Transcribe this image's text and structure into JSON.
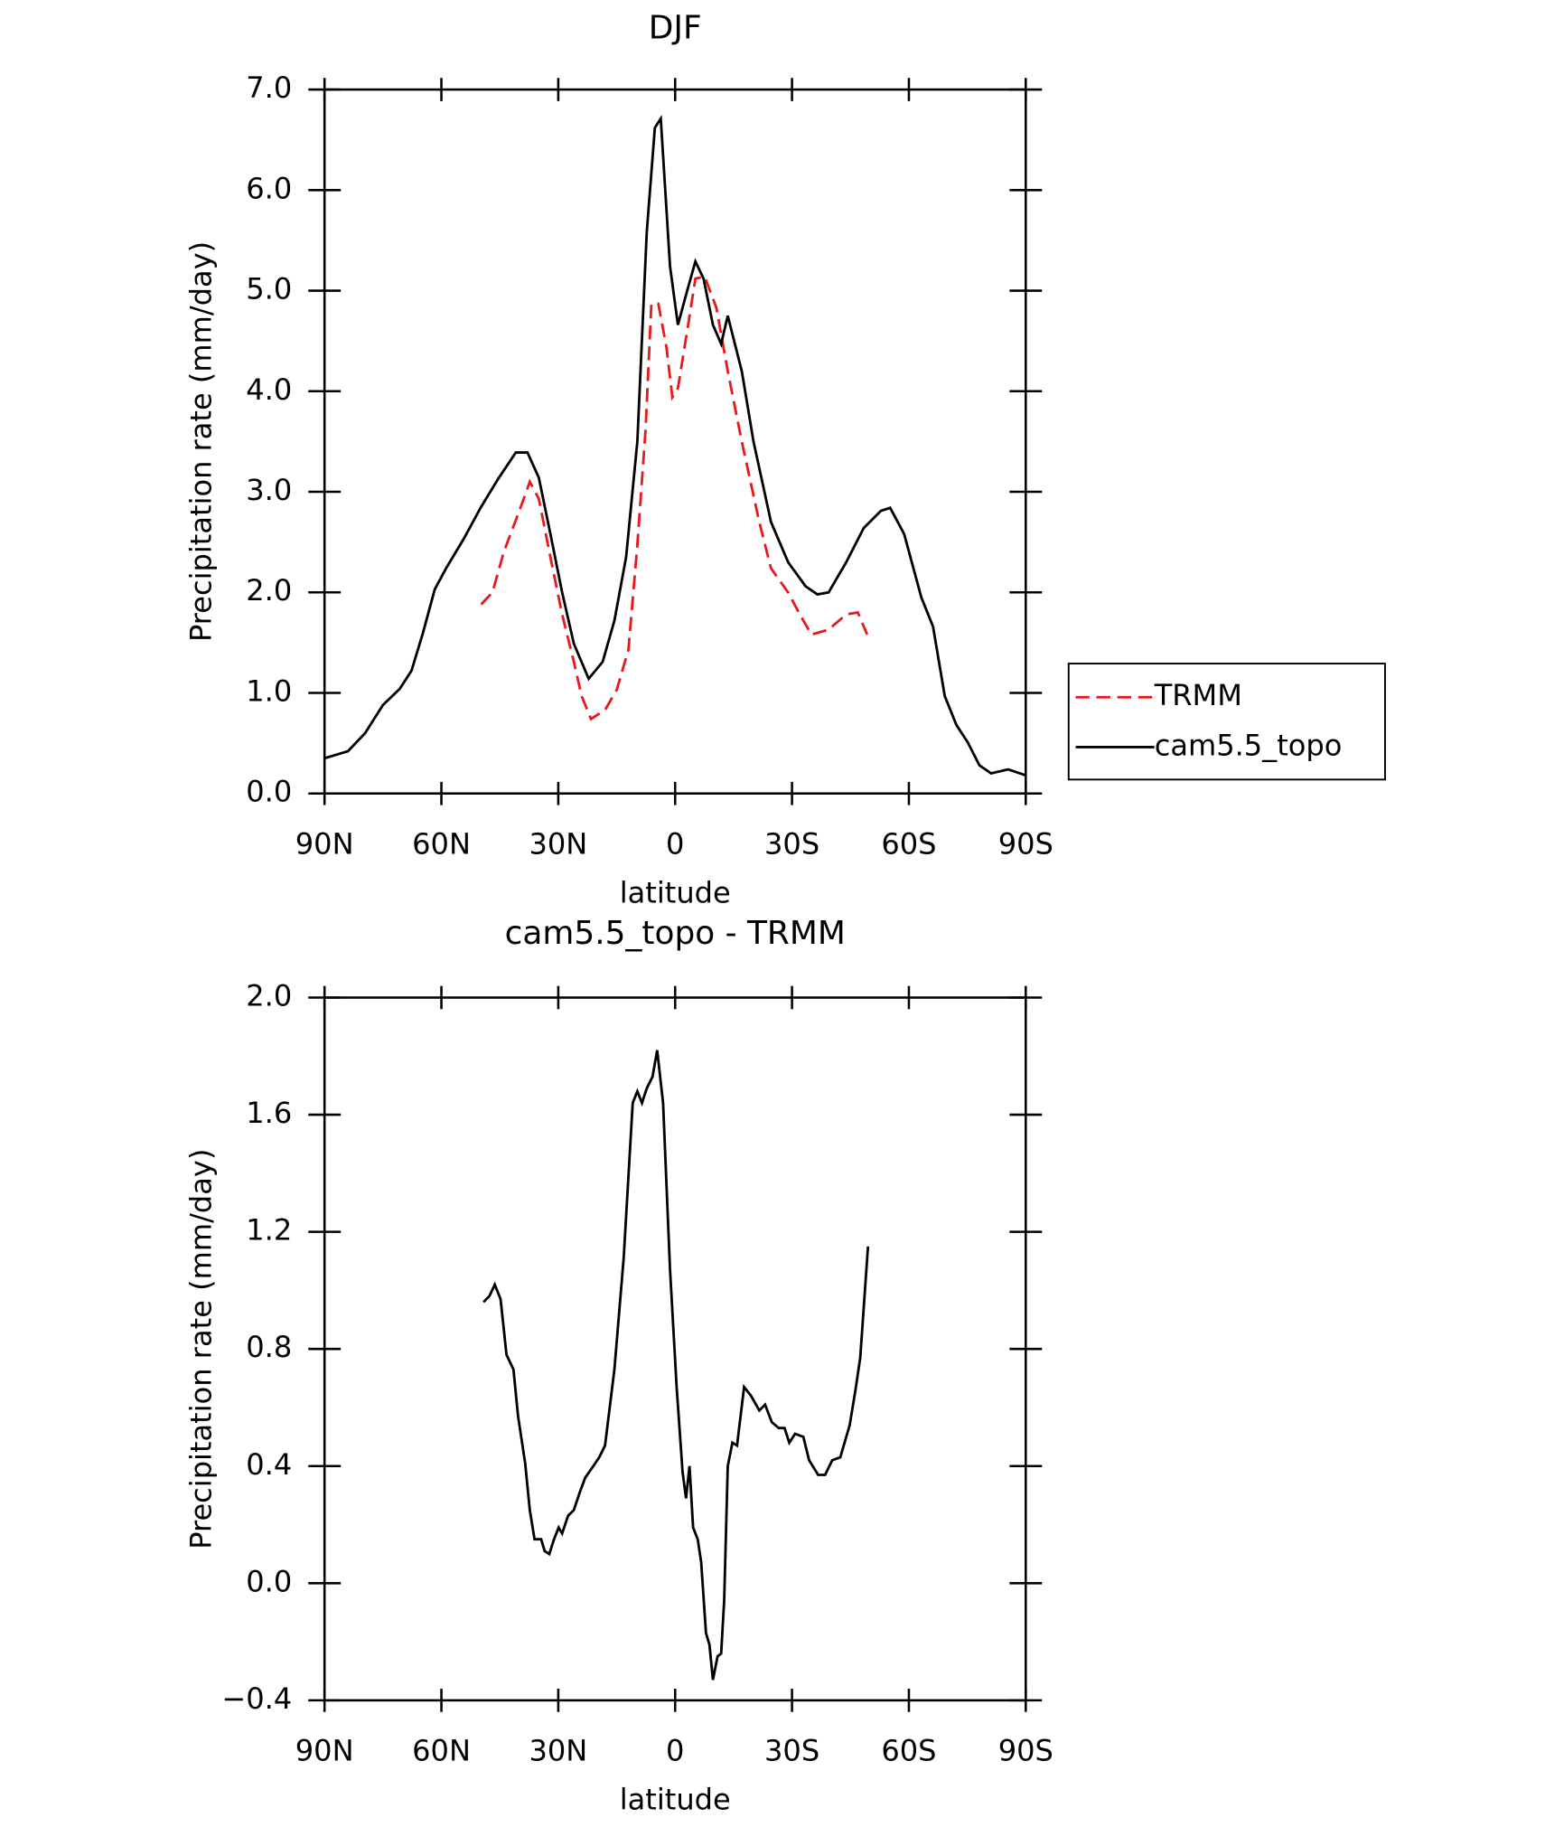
{
  "chart_data": [
    {
      "type": "line",
      "title": "DJF",
      "xlabel": "latitude",
      "ylabel": "Precipitation rate (mm/day)",
      "xlim": [
        90,
        -90
      ],
      "xticks": [
        {
          "value": 90,
          "label": "90N"
        },
        {
          "value": 60,
          "label": "60N"
        },
        {
          "value": 30,
          "label": "30N"
        },
        0,
        {
          "value": -30,
          "label": "30S"
        },
        {
          "value": -60,
          "label": "60S"
        },
        {
          "value": -90,
          "label": "90S"
        }
      ],
      "ylim": [
        0,
        7
      ],
      "yticks": [
        {
          "value": 0,
          "label": "0.0"
        },
        {
          "value": 1,
          "label": "1.0"
        },
        {
          "value": 2,
          "label": "2.0"
        },
        {
          "value": 3,
          "label": "3.0"
        },
        {
          "value": 4,
          "label": "4.0"
        },
        {
          "value": 5,
          "label": "5.0"
        },
        {
          "value": 6,
          "label": "6.0"
        },
        {
          "value": 7,
          "label": "7.0"
        }
      ],
      "legend": "right",
      "series": [
        {
          "name": "TRMM",
          "color": "#e8191c",
          "dash": true,
          "x": [
            49.8,
            46.9,
            43.9,
            40,
            37.3,
            35,
            32,
            29,
            26,
            24,
            21.6,
            18,
            15,
            12,
            9.7,
            7.6,
            6.1,
            4.3,
            2.2,
            0.7,
            -0.7,
            -3.1,
            -5.2,
            -7.6,
            -10.6,
            -13.5,
            -17.1,
            -21.6,
            -24.6,
            -29,
            -32,
            -35,
            -39.4,
            -43.9,
            -46.9,
            -49.3
          ],
          "values": [
            1.88,
            2.0,
            2.41,
            2.81,
            3.1,
            2.93,
            2.35,
            1.78,
            1.31,
            0.97,
            0.74,
            0.83,
            1.03,
            1.43,
            2.47,
            3.62,
            4.87,
            4.87,
            4.43,
            3.94,
            4.03,
            4.6,
            5.12,
            5.14,
            4.83,
            4.2,
            3.5,
            2.7,
            2.24,
            2.0,
            1.78,
            1.58,
            1.63,
            1.78,
            1.8,
            1.58
          ]
        },
        {
          "name": "cam5.5_topo",
          "color": "#000000",
          "dash": false,
          "x": [
            90,
            84,
            79.6,
            75,
            70.7,
            67.7,
            64.7,
            61.7,
            58.8,
            54.3,
            49.8,
            45.4,
            40.9,
            37.9,
            35,
            32,
            29,
            26,
            22.2,
            18.6,
            15.6,
            12.6,
            9.7,
            7.3,
            5.2,
            3.7,
            1.3,
            -0.7,
            -3.1,
            -5.2,
            -7.3,
            -9.7,
            -11.8,
            -13.5,
            -17.1,
            -20.1,
            -24.6,
            -29,
            -33.5,
            -36.5,
            -39.4,
            -43.9,
            -48.4,
            -52.8,
            -55.2,
            -58.8,
            -63.2,
            -66.2,
            -69.2,
            -72.2,
            -75.1,
            -78.1,
            -81.1,
            -85.5,
            -90
          ],
          "values": [
            0.35,
            0.42,
            0.6,
            0.88,
            1.04,
            1.22,
            1.6,
            2.03,
            2.24,
            2.53,
            2.85,
            3.13,
            3.39,
            3.39,
            3.14,
            2.58,
            2.0,
            1.49,
            1.14,
            1.31,
            1.72,
            2.35,
            3.5,
            5.58,
            6.62,
            6.71,
            5.24,
            4.66,
            5.0,
            5.29,
            5.12,
            4.66,
            4.47,
            4.75,
            4.2,
            3.5,
            2.7,
            2.3,
            2.06,
            1.98,
            2.0,
            2.3,
            2.64,
            2.81,
            2.84,
            2.58,
            1.95,
            1.66,
            0.97,
            0.68,
            0.51,
            0.28,
            0.2,
            0.24,
            0.18
          ]
        }
      ]
    },
    {
      "type": "line",
      "title": "cam5.5_topo - TRMM",
      "xlabel": "latitude",
      "ylabel": "Precipitation rate (mm/day)",
      "xlim": [
        90,
        -90
      ],
      "xticks": [
        {
          "value": 90,
          "label": "90N"
        },
        {
          "value": 60,
          "label": "60N"
        },
        {
          "value": 30,
          "label": "30N"
        },
        0,
        {
          "value": -30,
          "label": "30S"
        },
        {
          "value": -60,
          "label": "60S"
        },
        {
          "value": -90,
          "label": "90S"
        }
      ],
      "ylim": [
        -0.4,
        2.0
      ],
      "yticks": [
        {
          "value": -0.4,
          "label": "−0.4"
        },
        {
          "value": 0,
          "label": "0.0"
        },
        0.4,
        0.8,
        1.2,
        1.6,
        {
          "value": 2,
          "label": "2.0"
        }
      ],
      "series": [
        {
          "color": "#000000",
          "dash": false,
          "x": [
            49.2,
            47.7,
            46.3,
            44.8,
            43.3,
            41.5,
            40.3,
            38.5,
            37.3,
            36.1,
            34.4,
            33.5,
            32.3,
            31.1,
            29.9,
            29,
            27.5,
            26,
            24.5,
            23.1,
            21,
            19.5,
            18,
            15.6,
            13.2,
            10.9,
            9.7,
            8.5,
            7.3,
            5.8,
            4.6,
            3.1,
            1.3,
            -0.4,
            -1.9,
            -2.8,
            -3.7,
            -4.6,
            -5.8,
            -6.7,
            -7.9,
            -8.8,
            -9.7,
            -10.9,
            -11.8,
            -12.6,
            -13.5,
            -14.7,
            -15.9,
            -17.7,
            -19.5,
            -21.6,
            -23.1,
            -24.8,
            -26.6,
            -28.1,
            -29.3,
            -30.8,
            -32.9,
            -34.4,
            -36.7,
            -38.5,
            -40.3,
            -42.4,
            -44.8,
            -46.3,
            -47.5,
            -49.5
          ],
          "values": [
            0.96,
            0.98,
            1.02,
            0.97,
            0.78,
            0.73,
            0.57,
            0.41,
            0.25,
            0.15,
            0.15,
            0.11,
            0.1,
            0.15,
            0.19,
            0.17,
            0.23,
            0.25,
            0.31,
            0.36,
            0.4,
            0.43,
            0.47,
            0.73,
            1.11,
            1.64,
            1.68,
            1.64,
            1.69,
            1.73,
            1.82,
            1.64,
            1.07,
            0.67,
            0.38,
            0.29,
            0.4,
            0.19,
            0.15,
            0.07,
            -0.17,
            -0.21,
            -0.33,
            -0.25,
            -0.24,
            -0.06,
            0.4,
            0.48,
            0.47,
            0.67,
            0.64,
            0.59,
            0.61,
            0.55,
            0.53,
            0.53,
            0.48,
            0.51,
            0.5,
            0.42,
            0.37,
            0.37,
            0.42,
            0.43,
            0.54,
            0.66,
            0.77,
            1.15
          ]
        }
      ]
    }
  ]
}
